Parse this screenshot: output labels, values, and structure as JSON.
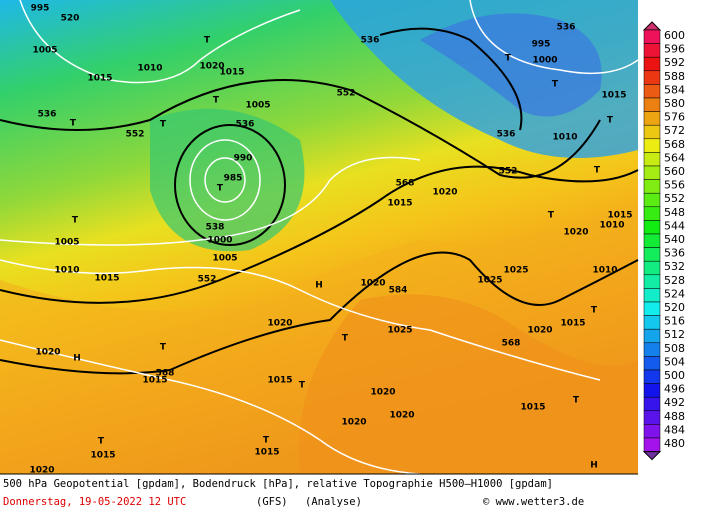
{
  "map_labels": [
    "520",
    "995",
    "1005",
    "1010",
    "1015",
    "536",
    "T",
    "552",
    "T",
    "T",
    "1020",
    "1015",
    "T",
    "1005",
    "536",
    "990",
    "985",
    "T",
    "538",
    "1000",
    "1005",
    "552",
    "552",
    "536",
    "536",
    "552",
    "536",
    "995",
    "1000",
    "T",
    "T",
    "568",
    "1015",
    "1020",
    "H",
    "584",
    "1020",
    "1025",
    "568",
    "568",
    "H",
    "1020",
    "1015",
    "T",
    "T",
    "1005",
    "1010",
    "1015",
    "1020",
    "1025",
    "1020",
    "1020",
    "1020",
    "1015",
    "T",
    "T",
    "1015",
    "1020",
    "T",
    "H",
    "1015",
    "1015",
    "T",
    "1010",
    "1015",
    "T",
    "1015",
    "1010",
    "T",
    "T",
    "1020",
    "1010",
    "1025",
    "1020",
    "T",
    "T",
    "1015"
  ],
  "colorbar": {
    "labels": [
      600,
      596,
      592,
      588,
      584,
      580,
      576,
      572,
      568,
      564,
      560,
      556,
      552,
      548,
      544,
      540,
      536,
      532,
      528,
      524,
      520,
      516,
      512,
      508,
      504,
      500,
      496,
      492,
      488,
      484,
      480
    ]
  },
  "caption": {
    "line1": "500 hPa Geopotential [gpdam], Bodendruck [hPa], relative Topographie H500–H1000 [gpdam]",
    "date": "Donnerstag, 19-05-2022  12 UTC",
    "model": "(GFS)",
    "run": "(Analyse)",
    "source": "© www.wetter3.de"
  }
}
